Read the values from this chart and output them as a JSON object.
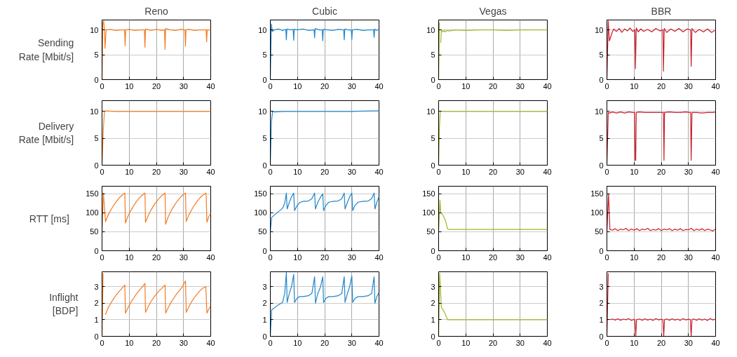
{
  "chart_data": [
    {
      "type": "line",
      "title": "Reno",
      "ylabel": "Sending Rate [Mbit/s]",
      "xlim": [
        0,
        40
      ],
      "xticks": [
        0,
        10,
        20,
        30,
        40
      ],
      "ylim": [
        0,
        12
      ],
      "yticks": [
        0,
        5,
        10
      ],
      "grid": true,
      "series": [
        {
          "color": "#f47b20",
          "x": [
            0,
            0.3,
            0.6,
            0.9,
            1.1,
            1.5,
            3,
            5,
            7,
            8.3,
            8.5,
            8.7,
            10,
            12,
            14,
            15.6,
            15.8,
            16,
            18,
            20,
            22,
            23,
            23.2,
            23.4,
            25,
            27,
            29,
            30.5,
            30.7,
            30.9,
            32,
            34,
            36,
            38.3,
            38.5,
            38.7,
            40
          ],
          "values": [
            0,
            11.5,
            11.8,
            10,
            6.3,
            10,
            10.1,
            9.9,
            10,
            10,
            6.8,
            10,
            10.1,
            9.9,
            10,
            10,
            6.5,
            10.2,
            9.9,
            10.1,
            9.9,
            10,
            6.1,
            10.3,
            10,
            9.9,
            10.1,
            10,
            6.7,
            10,
            10.1,
            9.9,
            10,
            10,
            7.6,
            10,
            10
          ]
        }
      ]
    },
    {
      "type": "line",
      "title": "Cubic",
      "xlim": [
        0,
        40
      ],
      "xticks": [
        0,
        10,
        20,
        30,
        40
      ],
      "ylim": [
        0,
        12
      ],
      "yticks": [
        0,
        5,
        10
      ],
      "grid": true,
      "series": [
        {
          "color": "#1f86cc",
          "x": [
            0,
            0.4,
            0.7,
            1.5,
            3,
            4.5,
            5.7,
            5.9,
            6.1,
            7.5,
            8.4,
            8.6,
            8.8,
            10,
            12,
            14,
            16.1,
            16.3,
            16.5,
            18,
            19.1,
            19.3,
            19.5,
            21,
            23,
            25,
            27,
            27.2,
            27.4,
            28.5,
            29.8,
            30,
            30.2,
            32,
            34,
            36,
            38,
            38.2,
            38.4,
            39,
            40
          ],
          "values": [
            0,
            11.2,
            9.7,
            10,
            10.2,
            9.9,
            10.1,
            8.0,
            10.2,
            10,
            10.1,
            7.9,
            10.1,
            10,
            10.2,
            9.9,
            10,
            8.4,
            10.3,
            10,
            10,
            7.8,
            10.1,
            10,
            9.9,
            10.1,
            10,
            8.0,
            10.2,
            10,
            10,
            8.1,
            10,
            10.1,
            9.9,
            10,
            10,
            8.5,
            10.2,
            9.9,
            10.1
          ]
        }
      ]
    },
    {
      "type": "line",
      "title": "Vegas",
      "xlim": [
        0,
        40
      ],
      "xticks": [
        0,
        10,
        20,
        30,
        40
      ],
      "ylim": [
        0,
        12
      ],
      "yticks": [
        0,
        5,
        10
      ],
      "grid": true,
      "series": [
        {
          "color": "#9cb82a",
          "x": [
            0,
            0.3,
            0.6,
            0.8,
            1,
            1.5,
            2,
            2.5,
            3,
            4,
            6,
            10,
            15,
            20,
            25,
            30,
            35,
            40
          ],
          "values": [
            0,
            11.5,
            null,
            7.4,
            10,
            9.6,
            9.9,
            9.6,
            9.9,
            9.8,
            10,
            9.9,
            10,
            10,
            9.9,
            10,
            10,
            10
          ]
        }
      ]
    },
    {
      "type": "line",
      "title": "BBR",
      "xlim": [
        0,
        40
      ],
      "xticks": [
        0,
        10,
        20,
        30,
        40
      ],
      "ylim": [
        0,
        12
      ],
      "yticks": [
        0,
        5,
        10
      ],
      "grid": true,
      "series": [
        {
          "color": "#cc1c27",
          "x": [
            0,
            0.5,
            0.9,
            2,
            2.5,
            3.5,
            4.5,
            5.5,
            6.5,
            7.5,
            8.5,
            9.5,
            10.3,
            10.5,
            10.8,
            11.5,
            12.5,
            13.5,
            15,
            16.5,
            18,
            19.5,
            20.6,
            20.8,
            21.1,
            22,
            23.5,
            25,
            26.5,
            28,
            29.5,
            30.8,
            31,
            31.3,
            32.5,
            34,
            35.5,
            37,
            38.5,
            40
          ],
          "values": [
            0,
            11.8,
            7.8,
            9.6,
            10.2,
            9.7,
            10.3,
            9.5,
            10.2,
            9.8,
            10.4,
            9.7,
            10,
            2.2,
            10.4,
            9.6,
            10.2,
            9.7,
            10.1,
            9.6,
            10.3,
            9.8,
            10,
            1.7,
            10.3,
            9.5,
            10.2,
            9.7,
            10.3,
            9.6,
            10.2,
            10,
            2.7,
            10.3,
            9.5,
            10.1,
            9.6,
            10.2,
            9.5,
            10
          ]
        }
      ]
    },
    {
      "type": "line",
      "ylabel": "Delivery Rate [Mbit/s]",
      "xlim": [
        0,
        40
      ],
      "xticks": [
        0,
        10,
        20,
        30,
        40
      ],
      "ylim": [
        0,
        12
      ],
      "yticks": [
        0,
        5,
        10
      ],
      "grid": true,
      "series": [
        {
          "color": "#f47b20",
          "x": [
            0,
            0.5,
            0.9,
            1.5,
            5,
            10,
            20,
            30,
            40
          ],
          "values": [
            0,
            7,
            10,
            10.1,
            10,
            10,
            10,
            10,
            10
          ]
        }
      ]
    },
    {
      "type": "line",
      "xlim": [
        0,
        40
      ],
      "xticks": [
        0,
        10,
        20,
        30,
        40
      ],
      "ylim": [
        0,
        12
      ],
      "yticks": [
        0,
        5,
        10
      ],
      "grid": true,
      "series": [
        {
          "color": "#1f86cc",
          "x": [
            0,
            0.4,
            0.8,
            1.5,
            5,
            10,
            20,
            30,
            38,
            40
          ],
          "values": [
            0,
            8,
            10,
            9.9,
            10,
            10,
            10,
            10,
            10.1,
            10.1
          ]
        }
      ]
    },
    {
      "type": "line",
      "xlim": [
        0,
        40
      ],
      "xticks": [
        0,
        10,
        20,
        30,
        40
      ],
      "ylim": [
        0,
        12
      ],
      "yticks": [
        0,
        5,
        10
      ],
      "grid": true,
      "series": [
        {
          "color": "#9cb82a",
          "x": [
            0,
            0.3,
            0.6,
            1,
            5,
            10,
            20,
            30,
            40
          ],
          "values": [
            0,
            7,
            10,
            10,
            10,
            10,
            10,
            10,
            10
          ]
        }
      ]
    },
    {
      "type": "line",
      "xlim": [
        0,
        40
      ],
      "xticks": [
        0,
        10,
        20,
        30,
        40
      ],
      "ylim": [
        0,
        12
      ],
      "yticks": [
        0,
        5,
        10
      ],
      "grid": true,
      "series": [
        {
          "color": "#cc1c27",
          "x": [
            0,
            0.5,
            1,
            2,
            3.5,
            5,
            6.5,
            8,
            9.5,
            10.2,
            10.4,
            10.6,
            10.8,
            12,
            14,
            16,
            18,
            20,
            20.6,
            20.8,
            21,
            21.2,
            23,
            25,
            27,
            29,
            30.6,
            30.8,
            31,
            31.3,
            33,
            35,
            37,
            39,
            40
          ],
          "values": [
            0,
            9.8,
            9.7,
            9.9,
            9.7,
            9.9,
            9.7,
            9.9,
            9.8,
            9.8,
            0.9,
            0.9,
            9.8,
            9.9,
            9.8,
            9.8,
            9.8,
            9.8,
            9.8,
            9.8,
            0.9,
            9.8,
            9.9,
            9.8,
            9.8,
            9.9,
            9.8,
            9.8,
            0.9,
            9.8,
            9.8,
            9.7,
            9.8,
            9.8,
            9.9
          ]
        }
      ]
    },
    {
      "type": "line",
      "ylabel": "RTT [ms]",
      "xlim": [
        0,
        40
      ],
      "xticks": [
        0,
        10,
        20,
        30,
        40
      ],
      "ylim": [
        0,
        170
      ],
      "yticks": [
        0,
        50,
        100,
        150
      ],
      "grid": true,
      "series": [
        {
          "color": "#f47b20",
          "x": [
            0,
            0.5,
            1.3,
            2.3,
            3.3,
            4.3,
            5.3,
            6.3,
            7.3,
            8.4,
            8.6,
            9.6,
            10.6,
            11.6,
            12.6,
            13.6,
            14.6,
            15.8,
            16,
            17,
            18,
            19,
            20,
            21,
            22,
            23.2,
            23.4,
            24.4,
            25.4,
            26.4,
            27.4,
            28.4,
            29.4,
            30.7,
            31,
            32,
            33,
            34,
            35,
            36,
            37,
            38.3,
            38.6,
            39.3,
            40
          ],
          "values": [
            50,
            152,
            77,
            95,
            108,
            120,
            130,
            139,
            146,
            152,
            73,
            92,
            106,
            118,
            129,
            138,
            145,
            152,
            75,
            93,
            107,
            119,
            129,
            138,
            145,
            152,
            70,
            90,
            105,
            117,
            128,
            137,
            145,
            152,
            77,
            95,
            108,
            120,
            130,
            139,
            146,
            152,
            75,
            90,
            98
          ]
        }
      ]
    },
    {
      "type": "line",
      "xlim": [
        0,
        40
      ],
      "xticks": [
        0,
        10,
        20,
        30,
        40
      ],
      "ylim": [
        0,
        170
      ],
      "yticks": [
        0,
        50,
        100,
        150
      ],
      "grid": true,
      "series": [
        {
          "color": "#1f86cc",
          "x": [
            0,
            0.5,
            2.5,
            4.5,
            5.3,
            5.9,
            6.2,
            7,
            7.8,
            8.6,
            8.9,
            9.8,
            10.8,
            12,
            14,
            15.3,
            16.3,
            16.6,
            17.5,
            18.5,
            19.3,
            19.6,
            20.5,
            21.5,
            23,
            25,
            26.3,
            27.2,
            27.5,
            28.4,
            29.2,
            30,
            30.3,
            31.2,
            32.3,
            34,
            36,
            37.3,
            38.2,
            38.5,
            39.2,
            40
          ],
          "values": [
            50,
            88,
            100,
            112,
            125,
            152,
            110,
            128,
            142,
            152,
            106,
            118,
            127,
            130,
            131,
            137,
            152,
            110,
            128,
            142,
            150,
            106,
            120,
            128,
            130,
            131,
            137,
            152,
            110,
            128,
            142,
            152,
            106,
            120,
            128,
            130,
            131,
            137,
            152,
            110,
            128,
            142
          ]
        }
      ]
    },
    {
      "type": "line",
      "xlim": [
        0,
        40
      ],
      "xticks": [
        0,
        10,
        20,
        30,
        40
      ],
      "ylim": [
        0,
        170
      ],
      "yticks": [
        0,
        50,
        100,
        150
      ],
      "grid": true,
      "series": [
        {
          "color": "#9cb82a",
          "x": [
            0,
            0.5,
            0.8,
            1.5,
            2.5,
            3.3,
            4,
            10,
            20,
            30,
            40
          ],
          "values": [
            50,
            133,
            100,
            95,
            80,
            57,
            56,
            56,
            56,
            56,
            56
          ]
        }
      ]
    },
    {
      "type": "line",
      "xlim": [
        0,
        40
      ],
      "xticks": [
        0,
        10,
        20,
        30,
        40
      ],
      "ylim": [
        0,
        170
      ],
      "yticks": [
        0,
        50,
        100,
        150
      ],
      "grid": true,
      "series": [
        {
          "color": "#cc1c27",
          "x": [
            0,
            0.6,
            1.1,
            2,
            3,
            4,
            5,
            6,
            7,
            8,
            9,
            10,
            11,
            12,
            13,
            14,
            15,
            16,
            17,
            18,
            19,
            20,
            21,
            22,
            23,
            24,
            25,
            26,
            27,
            28,
            29,
            30,
            31,
            32,
            33,
            34,
            35,
            36,
            37,
            38,
            39,
            40
          ],
          "values": [
            50,
            150,
            56,
            54,
            58,
            53,
            57,
            55,
            59,
            53,
            57,
            54,
            58,
            53,
            57,
            55,
            59,
            53,
            56,
            54,
            58,
            53,
            57,
            55,
            58,
            53,
            57,
            54,
            58,
            53,
            56,
            55,
            59,
            53,
            57,
            54,
            58,
            53,
            57,
            55,
            52,
            58
          ]
        }
      ]
    },
    {
      "type": "line",
      "ylabel": "Inflight [BDP]",
      "xlim": [
        0,
        40
      ],
      "xticks": [
        0,
        10,
        20,
        30,
        40
      ],
      "ylim": [
        0,
        3.9
      ],
      "yticks": [
        0,
        1,
        2,
        3
      ],
      "grid": true,
      "series": [
        {
          "color": "#f47b20",
          "x": [
            0,
            0.4,
            0.9,
            1.2,
            2.2,
            3.2,
            4.2,
            5.2,
            6.2,
            7.3,
            8.4,
            8.6,
            9.6,
            10.6,
            11.6,
            12.6,
            13.6,
            14.6,
            15.8,
            16,
            17,
            18,
            19,
            20,
            21,
            22,
            23.2,
            23.4,
            24.4,
            25.4,
            26.4,
            27.4,
            28.4,
            29.4,
            30.7,
            31,
            32,
            33,
            34,
            35,
            36,
            37,
            38.2,
            38.6,
            39.3,
            40
          ],
          "values": [
            0,
            3.8,
            null,
            1.3,
            1.7,
            2.0,
            2.25,
            2.5,
            2.7,
            2.9,
            3.1,
            1.4,
            1.75,
            2.05,
            2.3,
            2.55,
            2.75,
            2.95,
            3.2,
            1.45,
            1.8,
            2.1,
            2.35,
            2.55,
            2.75,
            2.9,
            3.1,
            1.4,
            1.75,
            2.05,
            2.3,
            2.55,
            2.75,
            2.95,
            3.35,
            1.45,
            1.8,
            2.1,
            2.35,
            2.55,
            2.75,
            2.9,
            3.0,
            1.4,
            1.65,
            1.85
          ]
        }
      ]
    },
    {
      "type": "line",
      "xlim": [
        0,
        40
      ],
      "xticks": [
        0,
        10,
        20,
        30,
        40
      ],
      "ylim": [
        0,
        3.9
      ],
      "yticks": [
        0,
        1,
        2,
        3
      ],
      "grid": true,
      "series": [
        {
          "color": "#1f86cc",
          "x": [
            0,
            0.5,
            2.5,
            4.5,
            5.3,
            5.9,
            6.2,
            7,
            7.8,
            8.6,
            8.9,
            9.8,
            10.8,
            12,
            14,
            15.3,
            16.3,
            16.6,
            17.5,
            18.5,
            19.3,
            19.6,
            20.5,
            21.5,
            23,
            25,
            26.3,
            27.2,
            27.5,
            28.4,
            29.2,
            30,
            30.3,
            31.2,
            32.3,
            34,
            36,
            37.3,
            38.2,
            38.5,
            39.2,
            40
          ],
          "values": [
            0,
            1.6,
            1.85,
            2.05,
            2.6,
            3.85,
            2.05,
            2.6,
            3.0,
            3.75,
            2.05,
            2.3,
            2.4,
            2.4,
            2.45,
            2.6,
            3.6,
            2.0,
            2.6,
            3.0,
            3.6,
            2.05,
            2.3,
            2.4,
            2.4,
            2.45,
            2.6,
            3.6,
            2.05,
            2.6,
            3.0,
            3.65,
            2.05,
            2.3,
            2.4,
            2.4,
            2.45,
            2.6,
            3.6,
            2.0,
            2.4,
            2.65
          ]
        }
      ]
    },
    {
      "type": "line",
      "xlim": [
        0,
        40
      ],
      "xticks": [
        0,
        10,
        20,
        30,
        40
      ],
      "ylim": [
        0,
        3.9
      ],
      "yticks": [
        0,
        1,
        2,
        3
      ],
      "grid": true,
      "series": [
        {
          "color": "#9cb82a",
          "x": [
            0,
            0.4,
            1,
            2,
            3.3,
            5,
            10,
            20,
            30,
            40
          ],
          "values": [
            0,
            3.8,
            1.75,
            1.5,
            1.0,
            1.0,
            1,
            1,
            1,
            1
          ]
        }
      ]
    },
    {
      "type": "line",
      "xlim": [
        0,
        40
      ],
      "xticks": [
        0,
        10,
        20,
        30,
        40
      ],
      "ylim": [
        0,
        3.9
      ],
      "yticks": [
        0,
        1,
        2,
        3
      ],
      "grid": true,
      "series": [
        {
          "color": "#cc1c27",
          "x": [
            0,
            0.5,
            0.9,
            1.2,
            2,
            3,
            4,
            5,
            6,
            7,
            8,
            9,
            10,
            10.3,
            10.6,
            10.9,
            12,
            13,
            14,
            15,
            16,
            17,
            18,
            19,
            20,
            20.6,
            20.9,
            21.2,
            22,
            23,
            24,
            25,
            26,
            27,
            28,
            29,
            30,
            30.7,
            31,
            31.3,
            32,
            33,
            34,
            35,
            36,
            37,
            38,
            39,
            40
          ],
          "values": [
            0,
            3.8,
            null,
            1.0,
            1.05,
            0.98,
            1.06,
            0.97,
            1.04,
            1.0,
            1.07,
            0.96,
            1.03,
            1.0,
            0,
            1.0,
            1.05,
            0.97,
            1.06,
            0.98,
            1.04,
            0.96,
            1.07,
            0.99,
            1.03,
            1.0,
            0,
            1.0,
            1.05,
            0.97,
            1.06,
            0.98,
            1.04,
            0.96,
            1.07,
            0.99,
            1.03,
            1.0,
            0,
            1.0,
            1.05,
            0.97,
            1.06,
            0.98,
            1.04,
            0.96,
            1.07,
            0.99,
            1.03
          ]
        }
      ]
    }
  ]
}
